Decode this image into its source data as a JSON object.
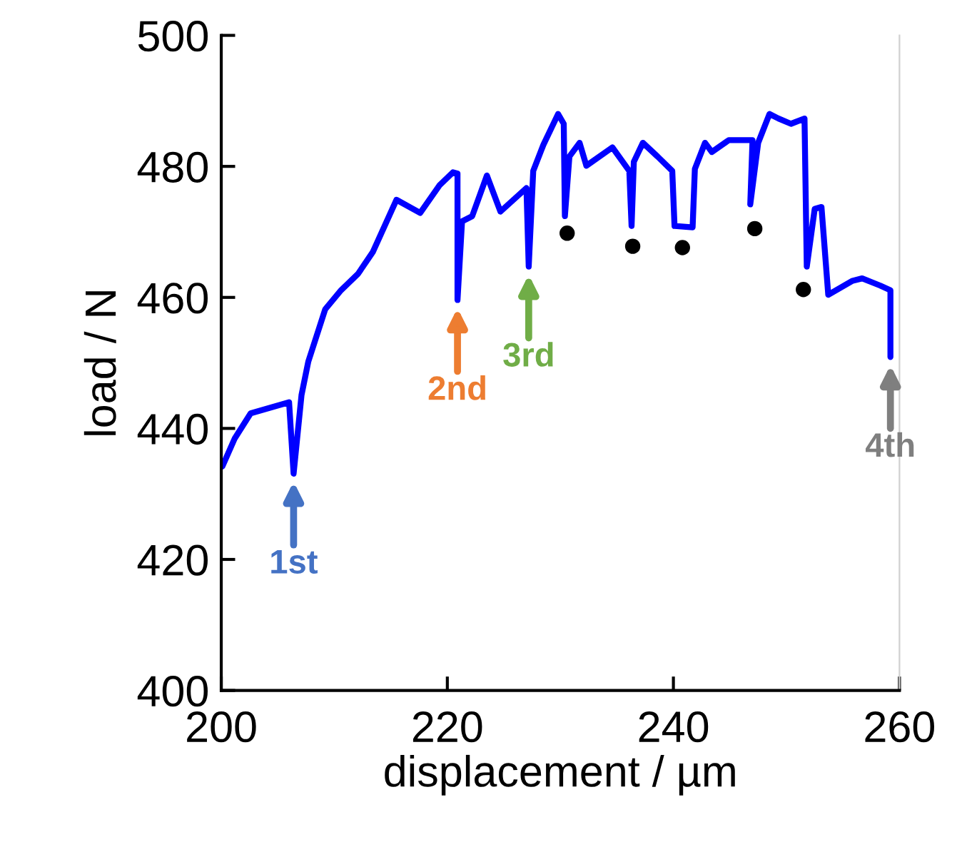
{
  "chart_data": {
    "type": "line",
    "xlabel": "displacement / µm",
    "ylabel": "load / N",
    "xlim": [
      200,
      260
    ],
    "xticks": [
      200,
      220,
      240,
      260
    ],
    "ylim": [
      400,
      500
    ],
    "yticks": [
      400,
      420,
      440,
      460,
      480,
      500
    ],
    "grid": false,
    "legend": false,
    "series": [
      {
        "color": "#0000ff",
        "marker": "none",
        "x": [
          200.1,
          201.2,
          202.6,
          206.0,
          206.4,
          207.1,
          207.7,
          209.2,
          210.6,
          212.1,
          213.4,
          215.5,
          217.6,
          219.3,
          220.5,
          220.9,
          220.9,
          221.3,
          222.2,
          223.5,
          224.7,
          227.0,
          227.2,
          227.6,
          228.5,
          229.8,
          230.3,
          230.4,
          230.8,
          231.7,
          232.3,
          234.6,
          236.1,
          236.3,
          236.5,
          237.3,
          238.6,
          239.9,
          240.1,
          241.7,
          241.9,
          242.8,
          243.4,
          244.9,
          247.0,
          246.8,
          247.5,
          248.5,
          249.3,
          250.4,
          251.6,
          251.8,
          252.5,
          253.1,
          253.7,
          255.8,
          256.7,
          258.3,
          259.2,
          259.2
        ],
        "values": [
          434.2,
          438.5,
          442.3,
          444.0,
          433.1,
          445.1,
          450.2,
          458.2,
          461.1,
          463.6,
          466.9,
          474.9,
          472.9,
          477.1,
          479.1,
          478.9,
          459.6,
          471.6,
          472.4,
          478.6,
          473.1,
          476.7,
          464.7,
          479.3,
          483.3,
          488.0,
          486.5,
          472.4,
          481.5,
          483.6,
          480.1,
          482.9,
          479.3,
          470.9,
          480.7,
          483.6,
          481.5,
          479.3,
          470.9,
          470.7,
          479.6,
          483.6,
          482.2,
          484.0,
          484.0,
          474.2,
          483.6,
          488.0,
          487.3,
          486.5,
          487.3,
          464.7,
          473.5,
          473.8,
          460.4,
          462.5,
          462.9,
          461.8,
          461.1,
          450.9
        ]
      },
      {
        "type": "scatter",
        "color": "#000000",
        "marker": "circle",
        "x": [
          230.6,
          236.4,
          240.8,
          247.2,
          251.5
        ],
        "values": [
          469.8,
          467.8,
          467.6,
          470.5,
          461.2
        ]
      }
    ],
    "annotations": [
      {
        "text": "1st",
        "x": 206.4,
        "y": 433.1
      },
      {
        "text": "2nd",
        "x": 220.9,
        "y": 459.6
      },
      {
        "text": "3rd",
        "x": 227.2,
        "y": 464.7
      },
      {
        "text": "4th",
        "x": 259.2,
        "y": 450.9
      }
    ]
  }
}
